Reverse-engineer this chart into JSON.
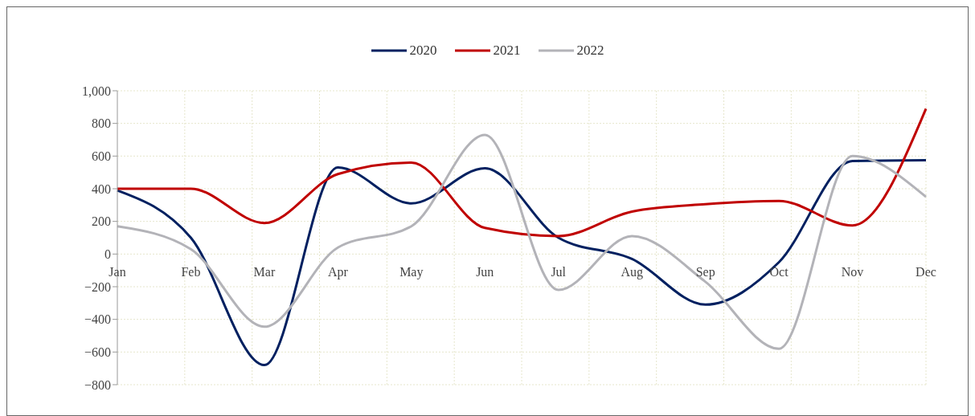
{
  "chart_data": {
    "type": "line",
    "categories": [
      "Jan",
      "Feb",
      "Mar",
      "Apr",
      "May",
      "Jun",
      "Jul",
      "Aug",
      "Sep",
      "Oct",
      "Nov",
      "Dec"
    ],
    "series": [
      {
        "name": "2020",
        "color": "#002060",
        "values": [
          390,
          100,
          -680,
          530,
          310,
          525,
          100,
          -30,
          -310,
          -50,
          570,
          575
        ]
      },
      {
        "name": "2021",
        "color": "#c00000",
        "values": [
          400,
          400,
          190,
          490,
          560,
          160,
          110,
          260,
          305,
          325,
          175,
          890
        ]
      },
      {
        "name": "2022",
        "color": "#b3b3b8",
        "values": [
          170,
          30,
          -445,
          40,
          170,
          730,
          -220,
          110,
          -170,
          -580,
          600,
          350
        ]
      }
    ],
    "ylim": [
      -800,
      1000
    ],
    "yticks": [
      {
        "value": -800,
        "label": "−800"
      },
      {
        "value": -600,
        "label": "−600"
      },
      {
        "value": -400,
        "label": "−400"
      },
      {
        "value": -200,
        "label": "−200"
      },
      0,
      200,
      400,
      600,
      800,
      {
        "value": 1000,
        "label": "1,000"
      }
    ],
    "grid": true,
    "legend": "top",
    "marker": "none",
    "line_style": "solid"
  }
}
